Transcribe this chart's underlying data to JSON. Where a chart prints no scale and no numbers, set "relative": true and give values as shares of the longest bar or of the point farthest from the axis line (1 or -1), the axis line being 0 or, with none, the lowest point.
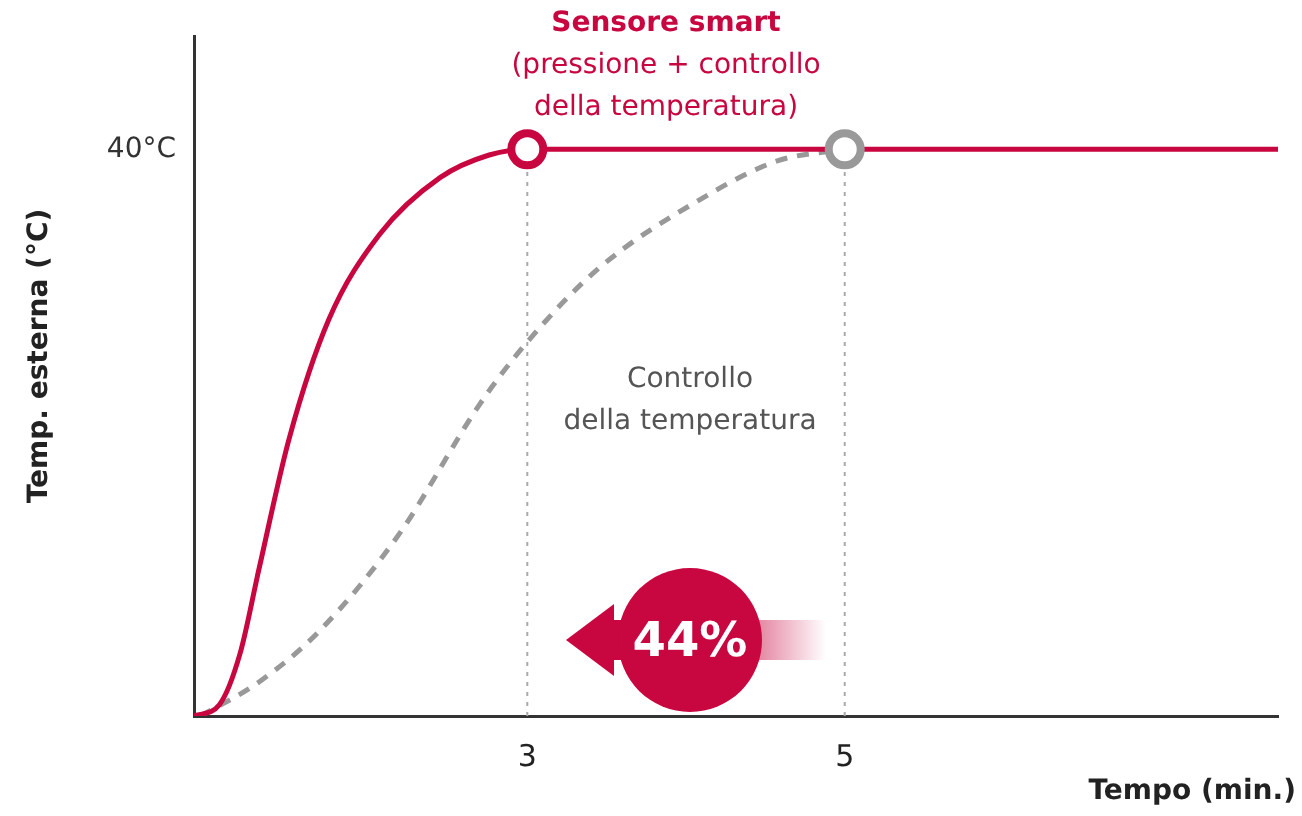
{
  "chart_data": {
    "type": "line",
    "relative": true,
    "xlabel": "Tempo (min.)",
    "ylabel": "Temp. esterna (°C)",
    "xlim": [
      0.9,
      7.73
    ],
    "xticks": [
      3,
      5
    ],
    "grid": false,
    "legend": false,
    "ref_lines": [
      {
        "axis": "x",
        "value": 3,
        "color": "#aaaaaa",
        "line_style": "dotted"
      },
      {
        "axis": "x",
        "value": 5,
        "color": "#aaaaaa",
        "line_style": "dotted"
      }
    ],
    "annotations": [
      "Sensore smart",
      "(pressione + controllo\ndella temperatura)",
      "Controllo\ndella temperatura",
      "40°C",
      "44%"
    ],
    "series": [
      {
        "color": "#c8063f",
        "line_style": "solid",
        "marker": "none",
        "x": [
          0.9,
          1.06,
          1.19,
          1.31,
          1.5,
          1.75,
          2.07,
          2.45,
          2.76,
          3,
          7.73
        ],
        "values": [
          0,
          0.02,
          0.11,
          0.26,
          0.49,
          0.7,
          0.85,
          0.95,
          0.99,
          1,
          1
        ]
      },
      {
        "color": "#999999",
        "line_style": "dashed",
        "marker": "none",
        "x": [
          0.94,
          1.31,
          1.69,
          2.19,
          2.7,
          3,
          3.45,
          4.08,
          4.58,
          5
        ],
        "values": [
          0,
          0.06,
          0.15,
          0.32,
          0.55,
          0.66,
          0.79,
          0.91,
          0.98,
          1
        ]
      },
      {
        "type": "scatter",
        "color": "#c8063f",
        "marker": "circle",
        "x": [
          3
        ],
        "values": [
          1
        ]
      },
      {
        "type": "scatter",
        "color": "#999999",
        "marker": "circle",
        "x": [
          5
        ],
        "values": [
          1
        ]
      }
    ]
  }
}
